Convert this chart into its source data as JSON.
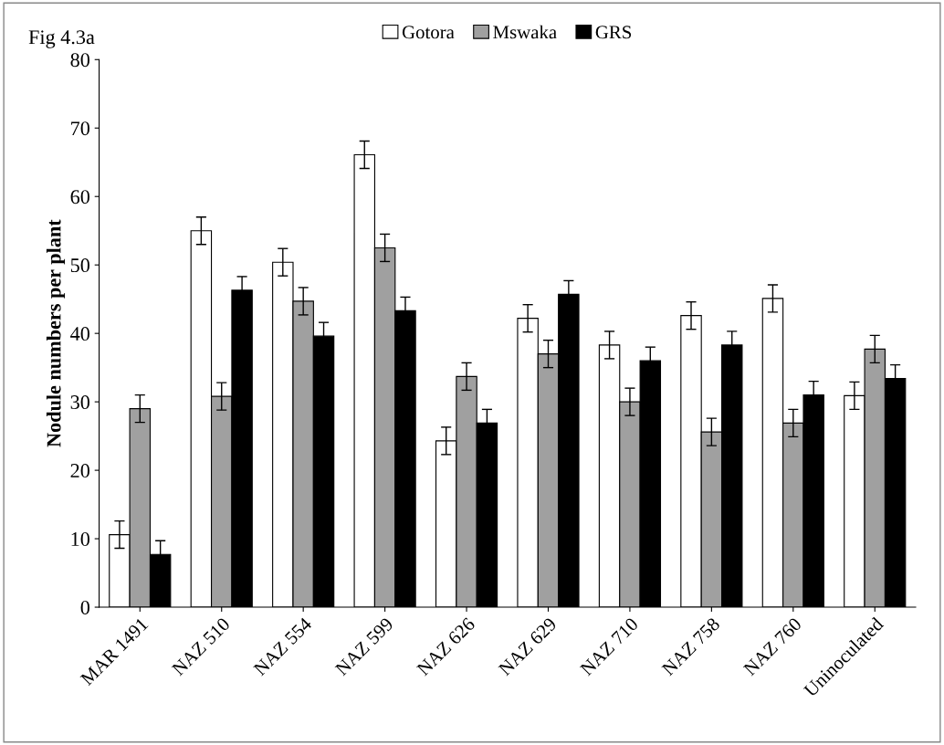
{
  "chart_data": {
    "type": "bar",
    "ylabel": "Nodule numbers per plant",
    "annotations": [
      "Fig 4.3a"
    ],
    "categories": [
      "MAR 1491",
      "NAZ 510",
      "NAZ 554",
      "NAZ 599",
      "NAZ 626",
      "NAZ 629",
      "NAZ 710",
      "NAZ 758",
      "NAZ 760",
      "Uninoculated"
    ],
    "series": [
      {
        "name": "Gotora",
        "color": "#ffffff",
        "values": [
          10.6,
          55,
          50.4,
          66.1,
          24.3,
          42.2,
          38.3,
          42.6,
          45.1,
          30.9
        ],
        "errors": [
          2,
          2,
          2,
          2,
          2,
          2,
          2,
          2,
          2,
          2
        ]
      },
      {
        "name": "Mswaka",
        "color": "#a0a0a0",
        "values": [
          29,
          30.8,
          44.7,
          52.5,
          33.7,
          37,
          30,
          25.6,
          26.9,
          37.7
        ],
        "errors": [
          2,
          2,
          2,
          2,
          2,
          2,
          2,
          2,
          2,
          2
        ]
      },
      {
        "name": "GRS",
        "color": "#000000",
        "values": [
          7.7,
          46.3,
          39.6,
          43.3,
          26.9,
          45.7,
          36,
          38.3,
          31,
          33.4
        ],
        "errors": [
          2,
          2,
          2,
          2,
          2,
          2,
          2,
          2,
          2,
          2
        ]
      }
    ],
    "ylim": [
      0,
      80
    ],
    "yticks": [
      0,
      10,
      20,
      30,
      40,
      50,
      60,
      70,
      80
    ],
    "grid": false,
    "legend": "top"
  }
}
